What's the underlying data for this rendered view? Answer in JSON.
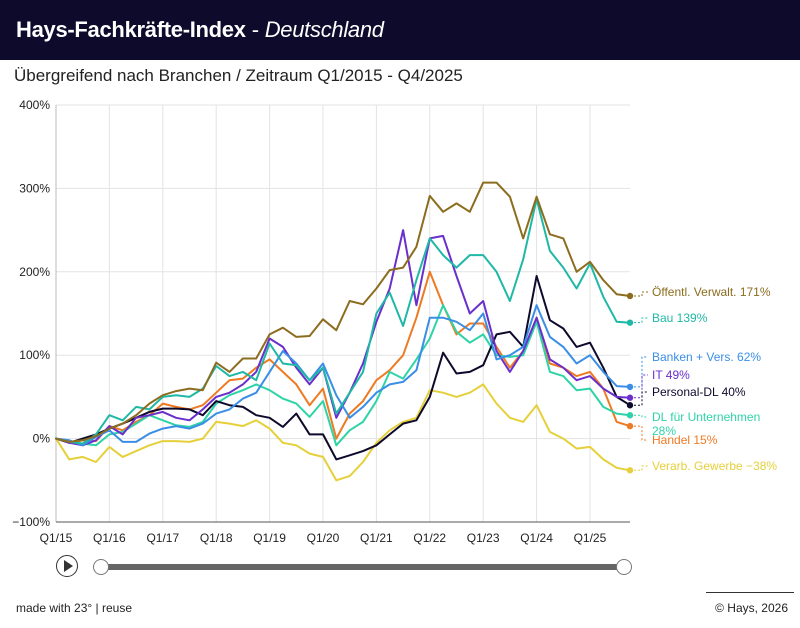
{
  "header": {
    "brand": "Hays-Fachkräfte-Index",
    "separator": "-",
    "region": "Deutschland"
  },
  "subtitle": "Übergreifend nach Branchen / Zeitraum Q1/2015 -  Q4/2025",
  "chart_data": {
    "type": "line",
    "title": "Hays-Fachkräfte-Index - Deutschland",
    "subtitle": "Übergreifend nach Branchen / Zeitraum Q1/2015 -  Q4/2025",
    "ylim": [
      -100,
      400
    ],
    "yticks": [
      -100,
      0,
      100,
      200,
      300,
      400
    ],
    "ytick_labels": [
      "−100%",
      "0%",
      "100%",
      "200%",
      "300%",
      "400%"
    ],
    "xtick_labels": [
      "Q1/15",
      "Q1/16",
      "Q1/17",
      "Q1/18",
      "Q1/19",
      "Q1/20",
      "Q1/21",
      "Q1/22",
      "Q1/23",
      "Q1/24",
      "Q1/25"
    ],
    "n_points": 44,
    "series": [
      {
        "name": "Öffentl. Verwalt.",
        "label": "Öffentl. Verwalt. 171%",
        "color": "#8c6d1f",
        "values": [
          0,
          -4,
          -2,
          3,
          12,
          18,
          28,
          42,
          52,
          57,
          60,
          58,
          91,
          80,
          96,
          96,
          125,
          133,
          122,
          123,
          143,
          130,
          165,
          161,
          180,
          202,
          205,
          230,
          291,
          272,
          282,
          272,
          307,
          307,
          290,
          240,
          290,
          245,
          240,
          200,
          212,
          190,
          173,
          171
        ]
      },
      {
        "name": "Bau",
        "label": "Bau 139%",
        "color": "#1fb8a6",
        "values": [
          0,
          -4,
          -6,
          5,
          28,
          22,
          38,
          35,
          50,
          52,
          50,
          60,
          87,
          75,
          80,
          70,
          114,
          90,
          88,
          70,
          85,
          30,
          55,
          80,
          150,
          175,
          135,
          190,
          240,
          220,
          205,
          220,
          220,
          200,
          165,
          215,
          287,
          225,
          205,
          180,
          210,
          170,
          140,
          139
        ]
      },
      {
        "name": "Banken + Vers.",
        "label": "Banken + Vers. 62%",
        "color": "#3a8ee6",
        "values": [
          0,
          -2,
          -8,
          2,
          10,
          -4,
          -4,
          6,
          12,
          15,
          12,
          18,
          30,
          35,
          48,
          55,
          80,
          105,
          90,
          70,
          90,
          52,
          25,
          38,
          55,
          65,
          68,
          82,
          145,
          145,
          140,
          130,
          150,
          95,
          100,
          110,
          160,
          122,
          110,
          90,
          100,
          80,
          63,
          62
        ]
      },
      {
        "name": "IT",
        "label": "IT 49%",
        "color": "#6a2fcc",
        "values": [
          0,
          -5,
          -8,
          -2,
          15,
          5,
          25,
          28,
          32,
          25,
          22,
          35,
          50,
          55,
          65,
          80,
          120,
          110,
          85,
          65,
          85,
          25,
          55,
          90,
          140,
          180,
          250,
          160,
          240,
          243,
          195,
          150,
          165,
          105,
          80,
          105,
          145,
          95,
          85,
          70,
          75,
          60,
          50,
          49
        ]
      },
      {
        "name": "Personal-DL",
        "label": "Personal-DL 40%",
        "color": "#0d0a2c",
        "values": [
          0,
          -5,
          0,
          5,
          12,
          18,
          25,
          32,
          36,
          36,
          35,
          28,
          45,
          40,
          38,
          28,
          25,
          14,
          30,
          5,
          5,
          -25,
          -20,
          -15,
          -8,
          5,
          18,
          22,
          50,
          103,
          78,
          80,
          88,
          125,
          128,
          110,
          195,
          142,
          132,
          110,
          115,
          85,
          50,
          40
        ]
      },
      {
        "name": "DL für Unternehmen",
        "label": "DL für Unternehmen 28%",
        "color": "#2fd3a8",
        "values": [
          0,
          -3,
          -6,
          -8,
          5,
          8,
          18,
          28,
          22,
          16,
          14,
          20,
          42,
          52,
          58,
          65,
          58,
          48,
          42,
          26,
          45,
          -8,
          10,
          20,
          45,
          80,
          72,
          95,
          120,
          160,
          128,
          115,
          125,
          100,
          98,
          100,
          140,
          80,
          75,
          58,
          60,
          38,
          30,
          28
        ]
      },
      {
        "name": "Handel",
        "label": "Handel 15%",
        "color": "#ee7a22",
        "values": [
          0,
          -5,
          -2,
          -3,
          15,
          10,
          20,
          28,
          42,
          38,
          35,
          40,
          55,
          70,
          72,
          85,
          95,
          80,
          65,
          40,
          60,
          0,
          30,
          45,
          70,
          82,
          100,
          145,
          200,
          160,
          125,
          138,
          138,
          110,
          85,
          105,
          145,
          90,
          85,
          75,
          80,
          60,
          20,
          15
        ]
      },
      {
        "name": "Verarb. Gewerbe",
        "label": "Verarb. Gewerbe −38%",
        "color": "#e6d03a",
        "values": [
          0,
          -25,
          -22,
          -28,
          -10,
          -22,
          -15,
          -8,
          -3,
          -3,
          -4,
          0,
          20,
          18,
          15,
          22,
          12,
          -5,
          -8,
          -18,
          -22,
          -50,
          -45,
          -28,
          -5,
          10,
          20,
          25,
          58,
          55,
          50,
          55,
          65,
          42,
          25,
          20,
          40,
          8,
          0,
          -12,
          -10,
          -25,
          -35,
          -38
        ]
      }
    ]
  },
  "timeline": {
    "play_icon": "play-icon"
  },
  "footer": {
    "made_with": "made with 23°",
    "divider": "|",
    "reuse": "reuse",
    "copyright": "© Hays, 2026"
  }
}
